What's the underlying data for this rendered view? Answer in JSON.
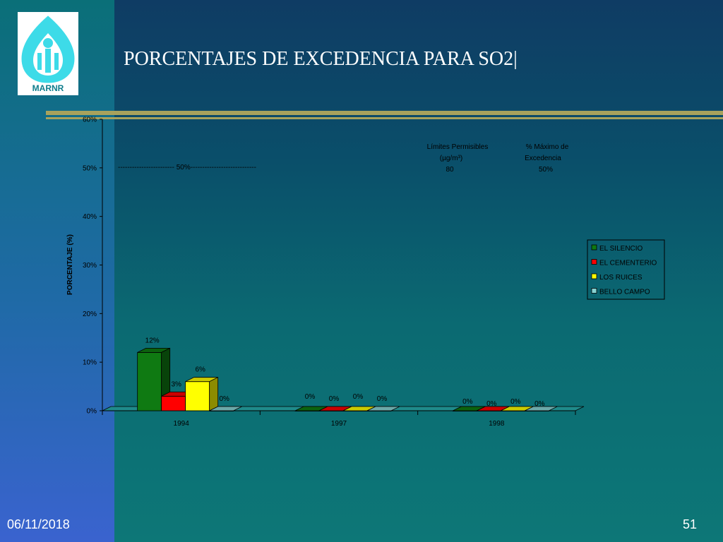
{
  "slide": {
    "title": "PORCENTAJES DE EXCEDENCIA PARA SO2|",
    "logo_text": "MARNR",
    "date": "06/11/2018",
    "page_number": "51"
  },
  "colors": {
    "bar_green": "#0f7a12",
    "bar_red": "#ff0000",
    "bar_yellow": "#ffff00",
    "bar_cyan": "#87d2d2",
    "text": "#000000"
  },
  "chart_data": {
    "type": "bar",
    "categories": [
      "1994",
      "1997",
      "1998"
    ],
    "series": [
      {
        "name": "EL SILENCIO",
        "color": "#0f7a12",
        "values": [
          12,
          0,
          0
        ]
      },
      {
        "name": "EL CEMENTERIO",
        "color": "#ff0000",
        "values": [
          3,
          0,
          0
        ]
      },
      {
        "name": "LOS RUICES",
        "color": "#ffff00",
        "values": [
          6,
          0,
          0
        ]
      },
      {
        "name": "BELLO CAMPO",
        "color": "#87d2d2",
        "values": [
          0,
          0,
          0
        ]
      }
    ],
    "ylabel": "PORCENTAJE (%)",
    "ylim": [
      0,
      60
    ],
    "y_ticks": [
      "0%",
      "10%",
      "20%",
      "30%",
      "40%",
      "50%",
      "60%"
    ],
    "data_labels": [
      [
        "12%",
        "3%",
        "6%",
        "0%"
      ],
      [
        "0%",
        "0%",
        "0%",
        "0%"
      ],
      [
        "0%",
        "0%",
        "0%",
        "0%"
      ]
    ],
    "reference_line": {
      "value": 50,
      "label": "------------------------ 50%----------------------------"
    },
    "annotation": {
      "limits_heading": "Límites Permisibles",
      "limits_unit": "(µg/m³)",
      "limits_value": "80",
      "max_heading": "% Máximo de",
      "max_heading2": "Excedencia",
      "max_value": "50%"
    },
    "legend_position": "right",
    "grid": false
  }
}
